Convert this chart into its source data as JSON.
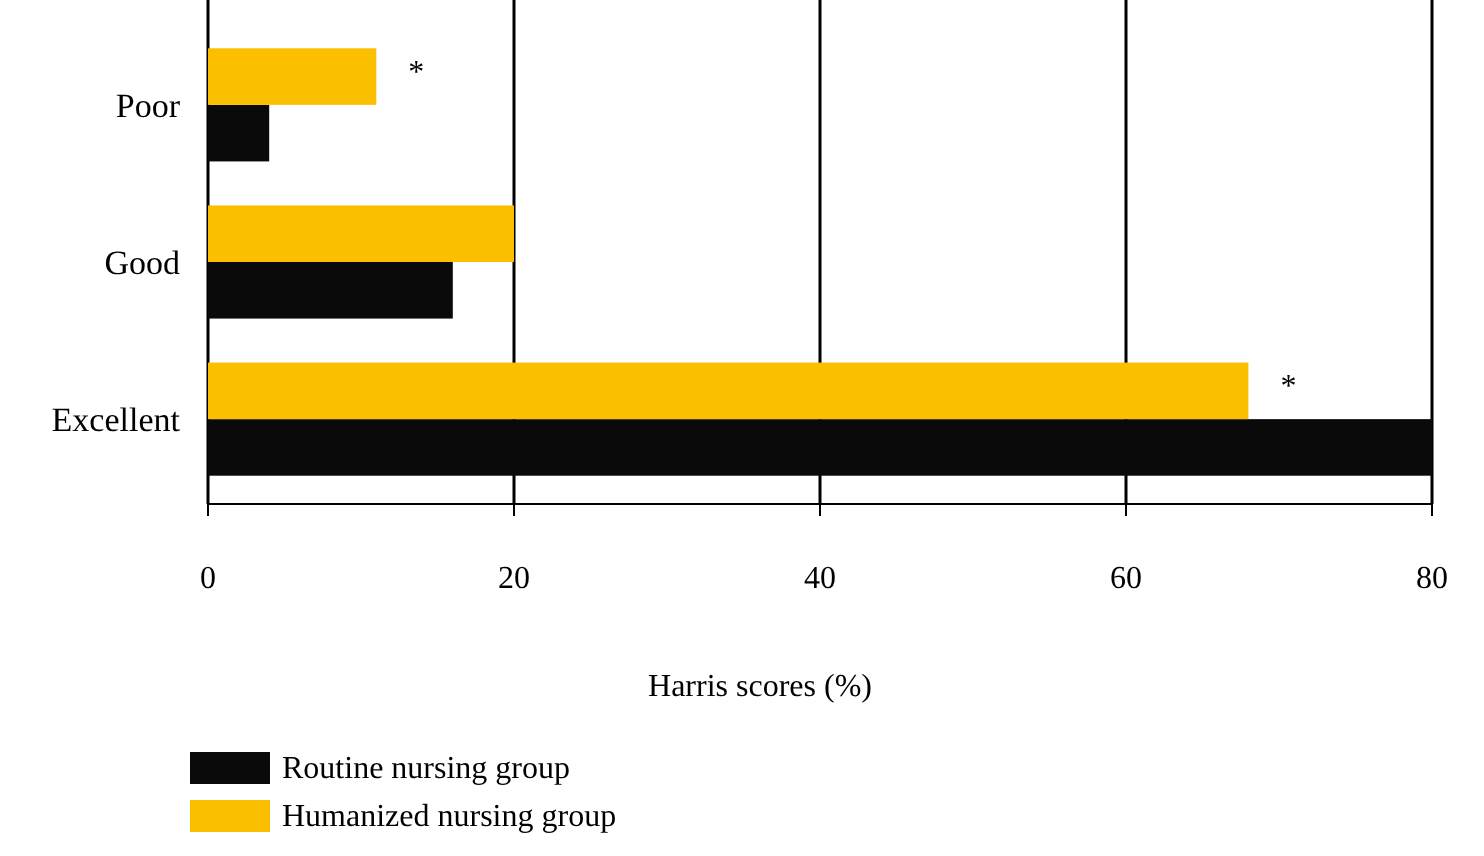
{
  "chart_data": {
    "type": "bar",
    "orientation": "horizontal",
    "xlabel": "Harris scores (%)",
    "categories": [
      "Poor",
      "Good",
      "Excellent"
    ],
    "series": [
      {
        "name": "Routine nursing group",
        "color": "#0a0a0a",
        "values": [
          4,
          16,
          80
        ]
      },
      {
        "name": "Humanized nursing group",
        "color": "#fbbf00",
        "values": [
          11,
          20,
          68
        ]
      }
    ],
    "xlim": [
      0,
      80
    ],
    "xticks": [
      0,
      20,
      40,
      60,
      80
    ],
    "grid": "x",
    "legend": "bottom left",
    "annotations": [
      {
        "text": "*",
        "x": 11,
        "y": "Poor"
      },
      {
        "text": "*",
        "x": 68,
        "y": "Excellent"
      }
    ]
  }
}
